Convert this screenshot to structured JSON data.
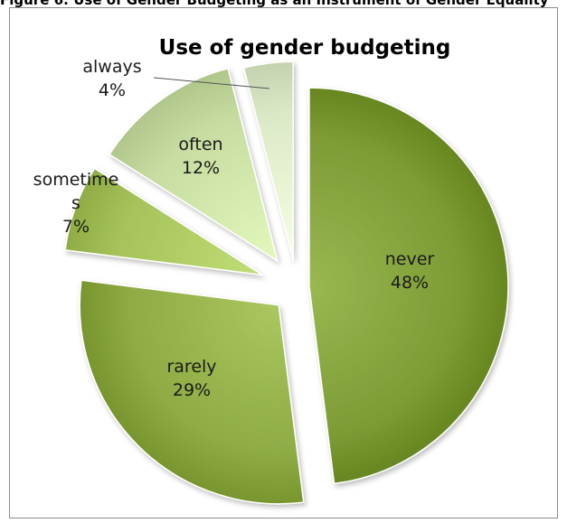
{
  "caption": "Figure 6: Use of Gender Budgeting as an Instrument of Gender Equality",
  "chart_data": {
    "type": "pie",
    "title": "Use of gender budgeting",
    "slices": [
      {
        "label": "never",
        "value": 48,
        "value_label": "48%",
        "color": "#7e9c35"
      },
      {
        "label": "rarely",
        "value": 29,
        "value_label": "29%",
        "color": "#8eab44"
      },
      {
        "label": "sometimes",
        "value": 7,
        "value_label": "7%",
        "color": "#a5c25a",
        "label_lines": [
          "sometime",
          "s"
        ]
      },
      {
        "label": "often",
        "value": 12,
        "value_label": "12%",
        "color": "#c7dca0"
      },
      {
        "label": "always",
        "value": 4,
        "value_label": "4%",
        "color": "#dbe8c6"
      }
    ],
    "legend": "none",
    "exploded": true
  }
}
